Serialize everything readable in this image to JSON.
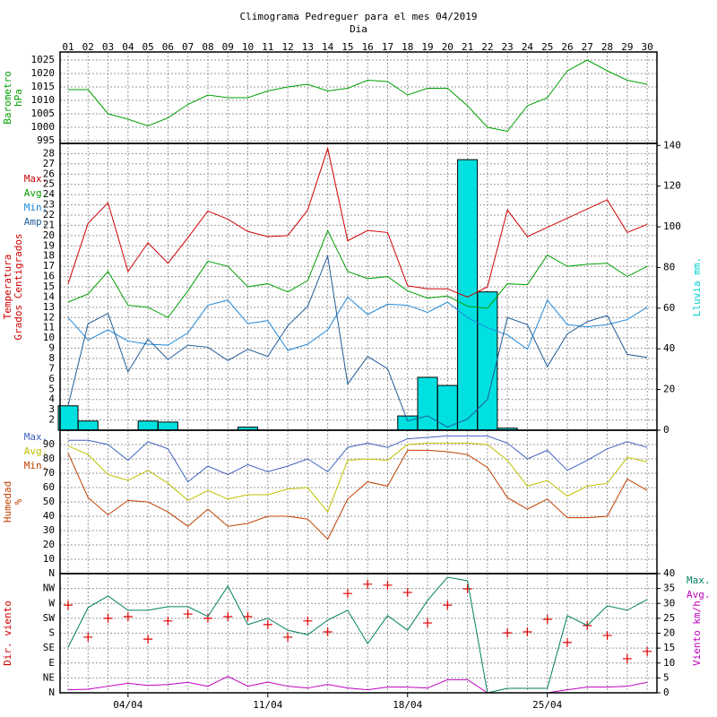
{
  "title": "Climograma Pedreguer para el mes 04/2019",
  "x_label": "Dia",
  "days": [
    "01",
    "02",
    "03",
    "04",
    "05",
    "06",
    "07",
    "08",
    "09",
    "10",
    "11",
    "12",
    "13",
    "14",
    "15",
    "16",
    "17",
    "18",
    "19",
    "20",
    "21",
    "22",
    "23",
    "24",
    "25",
    "26",
    "27",
    "28",
    "29",
    "30"
  ],
  "date_ticks": [
    {
      "value": 4,
      "label": "04/04"
    },
    {
      "value": 11,
      "label": "11/04"
    },
    {
      "value": 18,
      "label": "18/04"
    },
    {
      "value": 25,
      "label": "25/04"
    }
  ],
  "chart_data": [
    {
      "type": "line",
      "axis_label": [
        "Barometro",
        "hPa"
      ],
      "axis_label_color": "#00a000",
      "grid": true,
      "ylim": [
        994,
        1028
      ],
      "yticks": [
        995,
        1000,
        1005,
        1010,
        1015,
        1020,
        1025
      ],
      "series": [
        {
          "color": "#00a000",
          "values": [
            1014,
            1014,
            1005,
            1003,
            1000.5,
            1003.5,
            1008.5,
            1012,
            1011,
            1011,
            1013.5,
            1015,
            1016,
            1013.5,
            1014.5,
            1017.5,
            1017,
            1012,
            1014.5,
            1014.5,
            1008,
            1000,
            998.5,
            1008,
            1011,
            1021,
            1025,
            1021,
            1017.5,
            1016
          ]
        }
      ]
    },
    {
      "type": "line",
      "axis_label": [
        "Temperatura",
        "Grados Centigrados"
      ],
      "axis_label_color": "#d00000",
      "y2_label": "Lluvia mm.",
      "y2_label_color": "#00d0d0",
      "grid": true,
      "legend": "left",
      "ylim": [
        1,
        29
      ],
      "yticks": [
        2,
        3,
        4,
        5,
        6,
        7,
        8,
        9,
        10,
        11,
        12,
        13,
        14,
        15,
        16,
        17,
        18,
        19,
        20,
        21,
        22,
        23,
        24,
        25,
        26,
        27,
        28
      ],
      "y2lim": [
        0,
        141
      ],
      "y2ticks": [
        0,
        20,
        40,
        60,
        80,
        100,
        120,
        140
      ],
      "series": [
        {
          "type": "bar",
          "axis": "y2",
          "color": "#00e0e0",
          "values": [
            12,
            4.5,
            0,
            0,
            4.5,
            4,
            0,
            0,
            0,
            1.5,
            0,
            0,
            0,
            0,
            0,
            0,
            0,
            7,
            26,
            22,
            133,
            68,
            1,
            0,
            0,
            0,
            0,
            0,
            0,
            0
          ]
        },
        {
          "name": "Max.",
          "color": "#d00000",
          "values": [
            15.3,
            21.2,
            23.2,
            16.5,
            19.3,
            17.3,
            19.8,
            22.4,
            21.6,
            20.4,
            19.9,
            20,
            22.5,
            28.5,
            19.5,
            20.5,
            20.3,
            15.1,
            14.8,
            14.8,
            14,
            15,
            22.5,
            19.9,
            20.8,
            21.7,
            22.6,
            23.5,
            20.3,
            21.1
          ]
        },
        {
          "name": "Avg.",
          "color": "#00a000",
          "values": [
            13.5,
            14.3,
            16.5,
            13.2,
            13,
            12,
            14.6,
            17.5,
            17,
            15,
            15.3,
            14.5,
            15.6,
            20.5,
            16.5,
            15.8,
            16,
            14.6,
            13.9,
            14.1,
            13.1,
            12.9,
            15.3,
            15.2,
            18.1,
            17,
            17.2,
            17.3,
            16,
            17
          ]
        },
        {
          "name": "Min.",
          "color": "#2088d8",
          "values": [
            12,
            9.8,
            10.8,
            9.7,
            9.4,
            9.3,
            10.5,
            13.2,
            13.7,
            11.4,
            11.7,
            8.8,
            9.4,
            10.8,
            14,
            12.3,
            13.3,
            13.2,
            12.5,
            13.5,
            12,
            11,
            10.3,
            8.9,
            13.7,
            11.3,
            11.1,
            11.3,
            11.8,
            13
          ]
        },
        {
          "name": "Amp.",
          "color": "#205c98",
          "values": [
            3.4,
            11.4,
            12.4,
            6.7,
            9.9,
            7.9,
            9.3,
            9.1,
            7.8,
            8.9,
            8.2,
            11.2,
            13.1,
            18,
            5.5,
            8.2,
            7,
            1.9,
            2.4,
            1.3,
            2.1,
            4,
            12,
            11.3,
            7.2,
            10.4,
            11.6,
            12.2,
            8.4,
            8.1
          ]
        }
      ]
    },
    {
      "type": "line",
      "axis_label": [
        "Humedad",
        "%"
      ],
      "axis_label_color": "#c04000",
      "grid": true,
      "legend": "left",
      "ylim": [
        0,
        100
      ],
      "yticks": [
        10,
        20,
        30,
        40,
        50,
        60,
        70,
        80,
        90
      ],
      "series": [
        {
          "name": "Max.",
          "color": "#4060c0",
          "values": [
            93,
            93,
            90,
            79,
            92,
            87,
            64,
            75,
            69,
            76,
            71,
            75,
            80,
            71,
            88,
            91,
            88,
            94,
            95,
            96,
            96,
            96,
            91,
            80,
            86,
            72,
            79,
            87,
            92,
            88
          ]
        },
        {
          "name": "Avg.",
          "color": "#c0c000",
          "values": [
            89,
            83,
            69,
            65,
            72,
            63,
            51,
            58,
            52,
            55,
            55,
            59,
            60,
            43,
            79,
            80,
            79,
            90,
            91,
            91,
            91,
            90,
            79,
            61,
            65,
            54,
            61,
            63,
            81,
            78
          ]
        },
        {
          "name": "Min.",
          "color": "#c04000",
          "values": [
            84,
            53,
            41,
            51,
            50,
            43,
            33,
            45,
            33,
            35,
            40,
            40,
            38,
            24,
            52,
            64,
            61,
            86,
            86,
            85,
            83,
            74,
            53,
            45,
            52,
            39,
            39,
            40,
            66,
            58
          ]
        }
      ]
    },
    {
      "type": "line",
      "axis_label": [
        "Dir. viento"
      ],
      "axis_label_color": "#d00000",
      "y2_label": "Viento km/h",
      "y2_label_color": "#c000c0",
      "grid": true,
      "legend": "right",
      "ylim": [
        0,
        360
      ],
      "yticks": [
        {
          "value": 0,
          "label": "N"
        },
        {
          "value": 45,
          "label": "NE"
        },
        {
          "value": 90,
          "label": "E"
        },
        {
          "value": 135,
          "label": "SE"
        },
        {
          "value": 180,
          "label": "S"
        },
        {
          "value": 225,
          "label": "SW"
        },
        {
          "value": 270,
          "label": "W"
        },
        {
          "value": 315,
          "label": "NW"
        },
        {
          "value": 360,
          "label": "N"
        }
      ],
      "y2lim": [
        0,
        40
      ],
      "y2ticks": [
        0,
        5,
        10,
        15,
        20,
        25,
        30,
        35,
        40
      ],
      "series": [
        {
          "type": "scatter",
          "color": "#e00000",
          "values": [
            265,
            168,
            225,
            230,
            162,
            217,
            238,
            225,
            230,
            230,
            206,
            168,
            217,
            184,
            300,
            328,
            325,
            303,
            211,
            265,
            314,
            null,
            181,
            184,
            222,
            152,
            203,
            173,
            103,
            125
          ]
        },
        {
          "name": "Max.",
          "axis": "y2",
          "color": "#008060",
          "values": [
            15.3,
            28.6,
            32.5,
            27.7,
            27.7,
            28.9,
            28.9,
            25.6,
            35.8,
            22.9,
            25,
            21,
            19.5,
            24.4,
            27.7,
            16.5,
            25.9,
            21,
            31,
            38.8,
            37.6,
            0,
            1.5,
            1.5,
            1.5,
            25.9,
            22.6,
            29.2,
            27.7,
            31.3
          ]
        },
        {
          "name": "Avg.",
          "axis": "y2",
          "color": "#c000c0",
          "values": [
            1,
            1.2,
            2.2,
            3.2,
            2.5,
            2.8,
            3.5,
            2.2,
            5.5,
            2.2,
            3.6,
            2.2,
            1.6,
            2.8,
            1.6,
            1,
            1.9,
            1.9,
            1.6,
            4.4,
            4.4,
            0,
            0,
            0,
            0,
            1,
            1.9,
            1.9,
            2.2,
            3.5
          ]
        }
      ]
    }
  ]
}
